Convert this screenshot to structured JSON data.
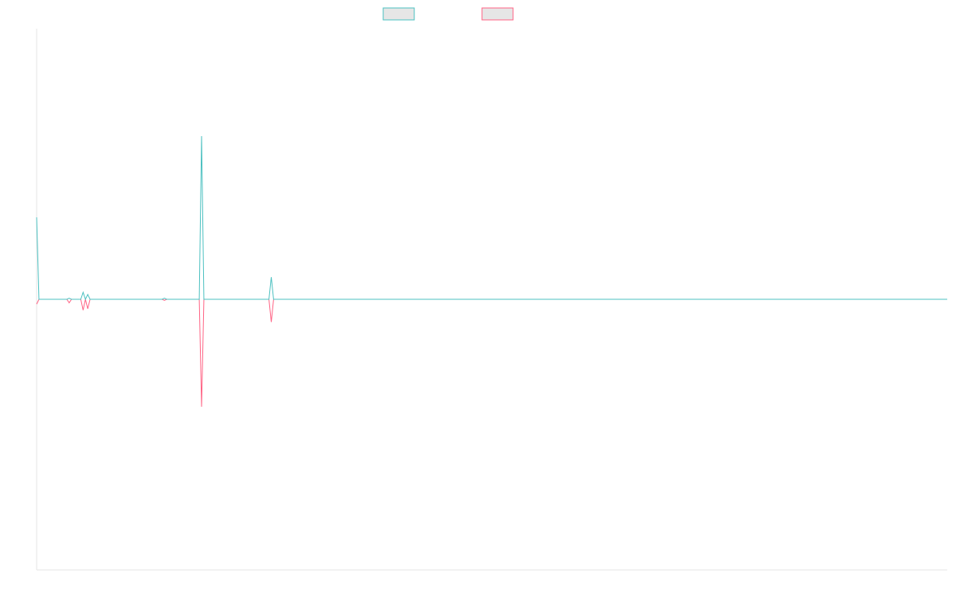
{
  "chart_data": {
    "type": "line",
    "title": "",
    "xlabel": "",
    "ylabel": "",
    "grid": false,
    "legend_position": "top-center",
    "x_count": 393,
    "ylim": [
      -1,
      1
    ],
    "series": [
      {
        "color": "#4bc0c0",
        "fill": "#e6e6e6",
        "points": [
          [
            0,
            0.303
          ],
          [
            1,
            0
          ],
          [
            13,
            0
          ],
          [
            14,
            0.004
          ],
          [
            15,
            0
          ],
          [
            19,
            0
          ],
          [
            20,
            0.026
          ],
          [
            21,
            0
          ],
          [
            22,
            0.018
          ],
          [
            23,
            0
          ],
          [
            54,
            0
          ],
          [
            55,
            0.004
          ],
          [
            56,
            0
          ],
          [
            70,
            0
          ],
          [
            71,
            0.603
          ],
          [
            72,
            0
          ],
          [
            100,
            0
          ],
          [
            101,
            0.082
          ],
          [
            102,
            0
          ],
          [
            392,
            0
          ]
        ]
      },
      {
        "color": "#ff6384",
        "fill": "#e6e6e6",
        "points": [
          [
            0,
            -0.018
          ],
          [
            1,
            0
          ],
          [
            13,
            0
          ],
          [
            14,
            -0.013
          ],
          [
            15,
            0
          ],
          [
            19,
            0
          ],
          [
            20,
            -0.04
          ],
          [
            21,
            0
          ],
          [
            22,
            -0.035
          ],
          [
            23,
            0
          ],
          [
            54,
            0
          ],
          [
            55,
            -0.004
          ],
          [
            56,
            0
          ],
          [
            70,
            0
          ],
          [
            71,
            -0.397
          ],
          [
            72,
            0
          ],
          [
            100,
            0
          ],
          [
            101,
            -0.084
          ],
          [
            102,
            0
          ],
          [
            392,
            0
          ]
        ]
      }
    ]
  }
}
